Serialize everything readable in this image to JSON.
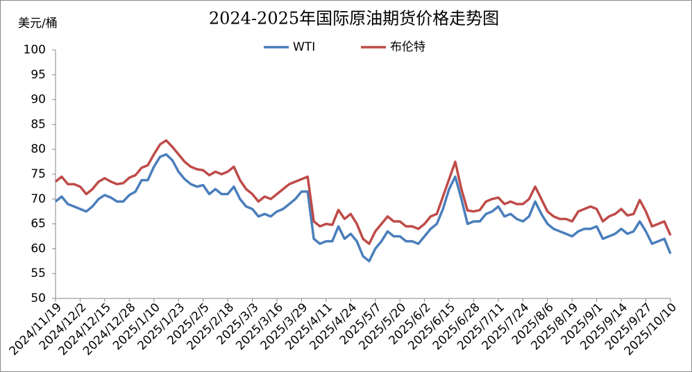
{
  "chart_data": {
    "type": "line",
    "title": "2024-2025年国际原油期货价格走势图",
    "y_label": "美元/桶",
    "categories": [
      "2024/11/19",
      null,
      null,
      null,
      "2024/12/2",
      null,
      null,
      null,
      "2024/12/15",
      null,
      null,
      null,
      "2024/12/28",
      null,
      null,
      null,
      "2025/1/10",
      null,
      null,
      null,
      "2025/1/23",
      null,
      null,
      null,
      "2025/2/5",
      null,
      null,
      null,
      "2025/2/18",
      null,
      null,
      null,
      "2025/3/3",
      null,
      null,
      null,
      "2025/3/16",
      null,
      null,
      null,
      "2025/3/29",
      null,
      null,
      null,
      "2025/4/11",
      null,
      null,
      null,
      "2025/4/24",
      null,
      null,
      null,
      "2025/5/7",
      null,
      null,
      null,
      "2025/5/20",
      null,
      null,
      null,
      "2025/6/2",
      null,
      null,
      null,
      "2025/6/15",
      null,
      null,
      null,
      "2025/6/28",
      null,
      null,
      null,
      "2025/7/11",
      null,
      null,
      null,
      "2025/7/24",
      null,
      null,
      null,
      "2025/8/6",
      null,
      null,
      null,
      "2025/8/19",
      null,
      null,
      null,
      "2025/9/1",
      null,
      null,
      null,
      "2025/9/14",
      null,
      null,
      null,
      "2025/9/27",
      null,
      null,
      null,
      "2025/10/10"
    ],
    "series": [
      {
        "name": "WTI",
        "color": "#4a7ebb",
        "values": [
          69.5,
          70.5,
          69,
          68.5,
          68,
          67.5,
          68.5,
          70,
          70.8,
          70.3,
          69.5,
          69.5,
          70.8,
          71.5,
          73.8,
          73.8,
          76.5,
          78.5,
          79,
          77.8,
          75.5,
          74,
          73,
          72.5,
          72.8,
          71,
          72,
          71,
          71,
          72.5,
          70,
          68.5,
          68,
          66.5,
          67,
          66.5,
          67.5,
          68,
          69,
          70,
          71.5,
          71.5,
          62,
          61,
          61.5,
          61.5,
          64.5,
          62,
          63,
          61.5,
          58.5,
          57.5,
          60,
          61.5,
          63.5,
          62.5,
          62.5,
          61.5,
          61.5,
          61,
          62.5,
          64,
          65,
          68,
          72,
          74.5,
          70,
          65,
          65.5,
          65.5,
          67,
          67.5,
          68.5,
          66.5,
          67,
          66,
          65.5,
          66.5,
          69.5,
          67,
          65,
          64,
          63.5,
          63,
          62.5,
          63.5,
          64,
          64,
          64.5,
          62,
          62.5,
          63,
          64,
          63,
          63.5,
          65.5,
          63.5,
          61,
          61.5,
          62,
          59
        ]
      },
      {
        "name": "布伦特",
        "color": "#be4b48",
        "values": [
          73.5,
          74.5,
          73,
          73,
          72.5,
          71,
          72,
          73.5,
          74.2,
          73.5,
          73,
          73.2,
          74.3,
          74.8,
          76.3,
          76.8,
          79,
          81,
          81.8,
          80.5,
          79,
          77.5,
          76.5,
          76,
          75.8,
          74.8,
          75.5,
          75,
          75.5,
          76.5,
          73.8,
          72,
          71,
          69.5,
          70.5,
          70,
          71,
          72,
          73,
          73.5,
          74,
          74.5,
          65.5,
          64.5,
          65,
          64.8,
          67.8,
          66,
          67,
          65,
          62,
          61,
          63.5,
          65,
          66.5,
          65.5,
          65.5,
          64.5,
          64.5,
          64,
          65,
          66.5,
          67,
          70.5,
          74,
          77.5,
          72,
          67.7,
          67.5,
          67.8,
          69.5,
          70,
          70.3,
          69,
          69.5,
          69,
          69,
          70,
          72.5,
          70,
          67.5,
          66.5,
          66,
          66,
          65.5,
          67.5,
          68,
          68.5,
          68,
          65.5,
          66.5,
          67,
          68,
          66.7,
          67,
          69.8,
          67.5,
          64.5,
          65,
          65.5,
          62.7
        ]
      }
    ],
    "ylim": [
      50,
      100
    ],
    "yticks": [
      50,
      55,
      60,
      65,
      70,
      75,
      80,
      85,
      90,
      95,
      100
    ],
    "grid": false,
    "legend": "top"
  }
}
